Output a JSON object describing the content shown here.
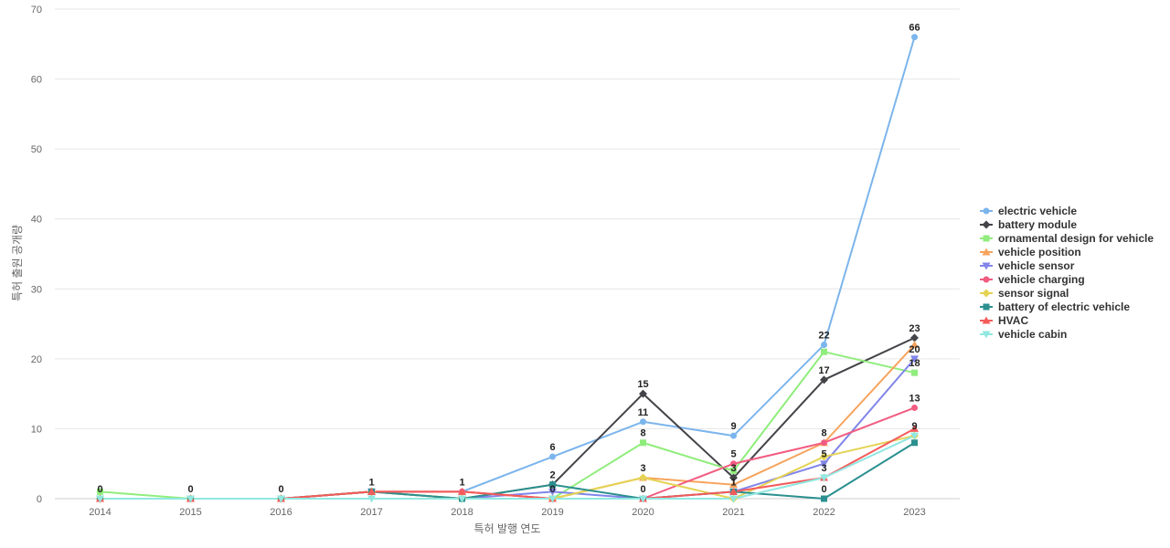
{
  "chart_data": {
    "type": "line",
    "title": "",
    "xlabel": "특허 발행 연도",
    "ylabel": "특허 출원 공개량",
    "ylim": [
      0,
      70
    ],
    "yticks": [
      0,
      10,
      20,
      30,
      40,
      50,
      60,
      70
    ],
    "categories": [
      "2014",
      "2015",
      "2016",
      "2017",
      "2018",
      "2019",
      "2020",
      "2021",
      "2022",
      "2023"
    ],
    "grid": true,
    "legend_position": "right",
    "series": [
      {
        "name": "electric vehicle",
        "color": "#7cb5ec",
        "marker": "circle",
        "values": [
          0,
          0,
          0,
          1,
          1,
          6,
          11,
          9,
          22,
          66
        ]
      },
      {
        "name": "battery module",
        "color": "#434348",
        "marker": "diamond",
        "values": [
          0,
          0,
          0,
          1,
          0,
          2,
          15,
          3,
          17,
          23
        ]
      },
      {
        "name": "ornamental design for vehicle",
        "color": "#90ed7d",
        "marker": "square",
        "values": [
          1,
          0,
          0,
          1,
          0,
          0,
          8,
          4,
          21,
          18
        ]
      },
      {
        "name": "vehicle position",
        "color": "#f7a35c",
        "marker": "triangle",
        "values": [
          0,
          0,
          0,
          1,
          1,
          0,
          3,
          2,
          8,
          22
        ]
      },
      {
        "name": "vehicle sensor",
        "color": "#8085e9",
        "marker": "triangle-down",
        "values": [
          0,
          0,
          0,
          1,
          0,
          1,
          0,
          1,
          5,
          20
        ]
      },
      {
        "name": "vehicle charging",
        "color": "#f15c80",
        "marker": "circle",
        "values": [
          0,
          0,
          0,
          1,
          1,
          0,
          0,
          5,
          8,
          13
        ]
      },
      {
        "name": "sensor signal",
        "color": "#e4d354",
        "marker": "diamond",
        "values": [
          0,
          0,
          0,
          1,
          0,
          0,
          3,
          0,
          6,
          9
        ]
      },
      {
        "name": "battery of electric vehicle",
        "color": "#2b908f",
        "marker": "square",
        "values": [
          0,
          0,
          0,
          1,
          0,
          2,
          0,
          1,
          0,
          8
        ]
      },
      {
        "name": "HVAC",
        "color": "#f45b5b",
        "marker": "triangle",
        "values": [
          0,
          0,
          0,
          1,
          1,
          0,
          0,
          1,
          3,
          10
        ]
      },
      {
        "name": "vehicle cabin",
        "color": "#91e8e1",
        "marker": "triangle-down",
        "values": [
          0,
          0,
          0,
          0,
          0,
          0,
          0,
          0,
          3,
          9
        ]
      }
    ],
    "data_labels": [
      {
        "category": "2014",
        "value": 0,
        "text": "0"
      },
      {
        "category": "2015",
        "value": 0,
        "text": "0"
      },
      {
        "category": "2016",
        "value": 0,
        "text": "0"
      },
      {
        "category": "2017",
        "value": 1,
        "text": "1"
      },
      {
        "category": "2018",
        "value": 1,
        "text": "1"
      },
      {
        "category": "2019",
        "value": 6,
        "text": "6"
      },
      {
        "category": "2019",
        "value": 2,
        "text": "2"
      },
      {
        "category": "2019",
        "value": 0,
        "text": "0"
      },
      {
        "category": "2020",
        "value": 15,
        "text": "15"
      },
      {
        "category": "2020",
        "value": 11,
        "text": "11"
      },
      {
        "category": "2020",
        "value": 8,
        "text": "8"
      },
      {
        "category": "2020",
        "value": 3,
        "text": "3"
      },
      {
        "category": "2020",
        "value": 0,
        "text": "0"
      },
      {
        "category": "2021",
        "value": 9,
        "text": "9"
      },
      {
        "category": "2021",
        "value": 5,
        "text": "5"
      },
      {
        "category": "2021",
        "value": 3,
        "text": "3"
      },
      {
        "category": "2021",
        "value": 1,
        "text": "1"
      },
      {
        "category": "2022",
        "value": 22,
        "text": "22"
      },
      {
        "category": "2022",
        "value": 17,
        "text": "17"
      },
      {
        "category": "2022",
        "value": 8,
        "text": "8"
      },
      {
        "category": "2022",
        "value": 5,
        "text": "5"
      },
      {
        "category": "2022",
        "value": 3,
        "text": "3"
      },
      {
        "category": "2022",
        "value": 0,
        "text": "0"
      },
      {
        "category": "2023",
        "value": 66,
        "text": "66"
      },
      {
        "category": "2023",
        "value": 23,
        "text": "23"
      },
      {
        "category": "2023",
        "value": 20,
        "text": "20"
      },
      {
        "category": "2023",
        "value": 18,
        "text": "18"
      },
      {
        "category": "2023",
        "value": 13,
        "text": "13"
      },
      {
        "category": "2023",
        "value": 9,
        "text": "9"
      }
    ]
  }
}
